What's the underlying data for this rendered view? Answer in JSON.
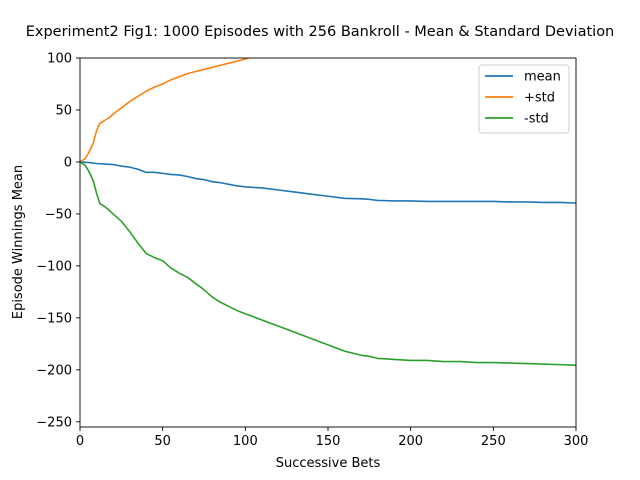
{
  "chart_data": {
    "type": "line",
    "title": "Experiment2 Fig1: 1000 Episodes with 256 Bankroll - Mean & Standard Deviation",
    "xlabel": "Successive Bets",
    "ylabel": "Episode Winnings Mean",
    "xlim": [
      0,
      300
    ],
    "ylim": [
      -255,
      100
    ],
    "xticks": [
      0,
      50,
      100,
      150,
      200,
      250,
      300
    ],
    "yticks": [
      -250,
      -200,
      -150,
      -100,
      -50,
      0,
      50,
      100
    ],
    "ytick_labels": [
      "−250",
      "−200",
      "−150",
      "−100",
      "−50",
      "0",
      "50",
      "100"
    ],
    "grid": false,
    "legend_position": "upper right",
    "series": [
      {
        "name": "mean",
        "color": "#1f77b4",
        "x": [
          0,
          5,
          10,
          15,
          20,
          25,
          30,
          35,
          40,
          45,
          50,
          55,
          60,
          65,
          70,
          75,
          80,
          85,
          90,
          95,
          100,
          110,
          120,
          130,
          140,
          150,
          160,
          170,
          175,
          180,
          190,
          200,
          210,
          220,
          230,
          240,
          250,
          260,
          270,
          280,
          290,
          300
        ],
        "y": [
          0,
          -0.5,
          -1.5,
          -2,
          -2.5,
          -4,
          -5,
          -7,
          -10,
          -10,
          -11,
          -12,
          -12.5,
          -14,
          -16,
          -17,
          -19,
          -20,
          -21.5,
          -23,
          -24,
          -25,
          -27,
          -29,
          -31,
          -33,
          -35,
          -35.5,
          -36,
          -37,
          -37.5,
          -37.5,
          -38,
          -38,
          -38,
          -38,
          -38,
          -38.5,
          -38.5,
          -39,
          -39,
          -39.5
        ]
      },
      {
        "name": "+std",
        "color": "#ff7f0e",
        "x": [
          0,
          3,
          5,
          8,
          10,
          12,
          15,
          18,
          20,
          25,
          30,
          35,
          40,
          45,
          50,
          55,
          60,
          65,
          70,
          75,
          80,
          85,
          90,
          95,
          100,
          102
        ],
        "y": [
          0,
          3,
          8,
          18,
          30,
          37,
          40,
          43,
          46,
          52,
          58,
          63,
          68,
          72,
          75,
          79,
          82,
          85,
          87,
          89,
          91,
          93,
          95,
          97,
          99,
          100
        ]
      },
      {
        "name": "-std",
        "color": "#2ca02c",
        "x": [
          0,
          3,
          5,
          8,
          10,
          12,
          15,
          18,
          20,
          25,
          30,
          35,
          40,
          45,
          50,
          55,
          60,
          65,
          70,
          75,
          80,
          85,
          90,
          95,
          100,
          110,
          120,
          130,
          140,
          150,
          160,
          170,
          175,
          180,
          190,
          200,
          210,
          220,
          230,
          240,
          250,
          260,
          270,
          280,
          290,
          300
        ],
        "y": [
          0,
          -3,
          -8,
          -18,
          -30,
          -40,
          -43,
          -47,
          -50,
          -57,
          -67,
          -78,
          -88,
          -92,
          -95,
          -102,
          -107,
          -111,
          -117,
          -123,
          -130,
          -135,
          -139,
          -143,
          -146,
          -152,
          -158,
          -164,
          -170,
          -176,
          -182,
          -186,
          -187,
          -189,
          -190,
          -191,
          -191,
          -192,
          -192,
          -193,
          -193,
          -193.5,
          -194,
          -194.5,
          -195,
          -195.5
        ]
      }
    ]
  }
}
